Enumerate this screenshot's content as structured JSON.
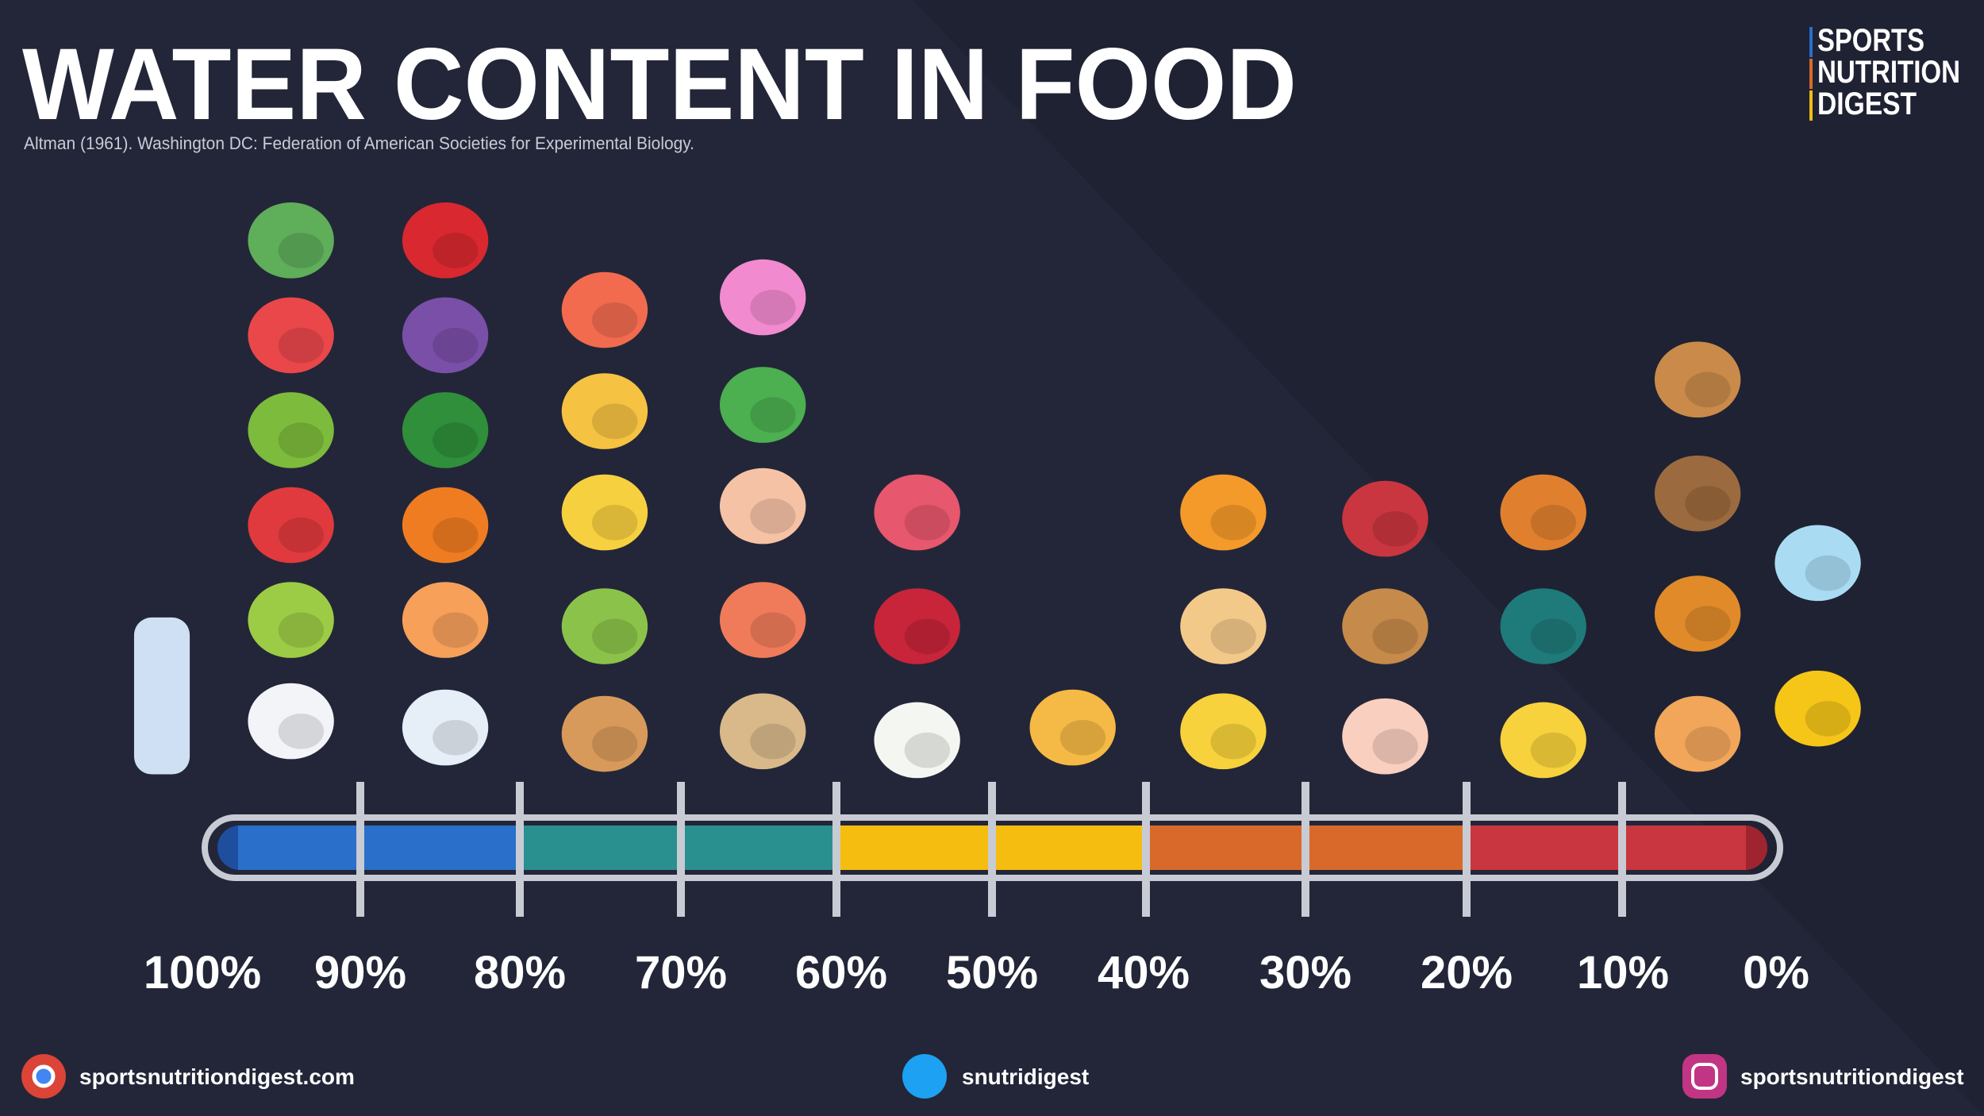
{
  "header": {
    "title": "WATER CONTENT IN FOOD",
    "source": "Altman (1961). Washington DC: Federation of American Societies for Experimental Biology."
  },
  "logo": {
    "lines": [
      "SPORTS",
      "NUTRITION",
      "DIGEST"
    ]
  },
  "scale": {
    "labels": [
      "100%",
      "90%",
      "80%",
      "70%",
      "60%",
      "50%",
      "40%",
      "30%",
      "20%",
      "10%",
      "0%"
    ]
  },
  "footer": {
    "website": "sportsnutritiondigest.com",
    "twitter": "snutridigest",
    "instagram": "sportsnutritiondigest"
  }
}
